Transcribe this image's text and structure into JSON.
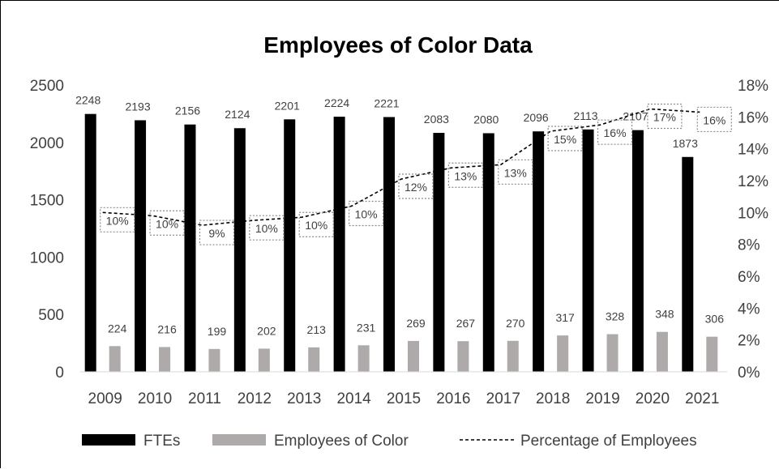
{
  "chart_data": {
    "type": "bar",
    "title": "Employees of Color Data",
    "categories": [
      "2009",
      "2010",
      "2011",
      "2012",
      "2013",
      "2014",
      "2015",
      "2016",
      "2017",
      "2018",
      "2019",
      "2020",
      "2021"
    ],
    "series": [
      {
        "name": "FTEs",
        "kind": "bar",
        "axis": "left",
        "color": "#000000",
        "values": [
          2248,
          2193,
          2156,
          2124,
          2201,
          2224,
          2221,
          2083,
          2080,
          2096,
          2113,
          2107,
          1873
        ],
        "labels": [
          "2248",
          "2193",
          "2156",
          "2124",
          "2201",
          "2224",
          "2221",
          "2083",
          "2080",
          "2096",
          "2113",
          "2107",
          "1873"
        ]
      },
      {
        "name": "Employees of Color",
        "kind": "bar",
        "axis": "left",
        "color": "#aeaaaa",
        "values": [
          224,
          216,
          199,
          202,
          213,
          231,
          269,
          267,
          270,
          317,
          328,
          348,
          306
        ],
        "labels": [
          "224",
          "216",
          "199",
          "202",
          "213",
          "231",
          "269",
          "267",
          "270",
          "317",
          "328",
          "348",
          "306"
        ]
      },
      {
        "name": "Percentage of Employees",
        "kind": "line",
        "axis": "right",
        "color": "#000000",
        "style": "dashed",
        "values": [
          10.0,
          9.8,
          9.2,
          9.5,
          9.7,
          10.4,
          12.1,
          12.8,
          13.0,
          15.1,
          15.5,
          16.5,
          16.3
        ],
        "labels": [
          "10%",
          "10%",
          "9%",
          "10%",
          "10%",
          "10%",
          "12%",
          "13%",
          "13%",
          "15%",
          "16%",
          "17%",
          "16%"
        ]
      }
    ],
    "y_left": {
      "min": 0,
      "max": 2500,
      "ticks": [
        "0",
        "500",
        "1000",
        "1500",
        "2000",
        "2500"
      ]
    },
    "y_right": {
      "min": 0,
      "max": 18,
      "ticks": [
        "0%",
        "2%",
        "4%",
        "6%",
        "8%",
        "10%",
        "12%",
        "14%",
        "16%",
        "18%"
      ]
    },
    "grid": false,
    "legend_position": "bottom"
  }
}
